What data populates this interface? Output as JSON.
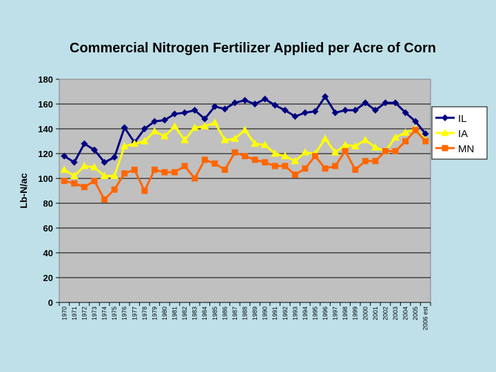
{
  "chart_data": {
    "type": "line",
    "title": "Commercial Nitrogen Fertilizer Applied per Acre of Corn",
    "xlabel": "",
    "ylabel": "Lb-N/ac",
    "ylim": [
      0,
      180
    ],
    "yticks": [
      0,
      20,
      40,
      60,
      80,
      100,
      120,
      140,
      160,
      180
    ],
    "grid": "horizontal",
    "legend_position": "right",
    "plot_background": "#c0c0c0",
    "categories": [
      "1970",
      "1971",
      "1972",
      "1973",
      "1974",
      "1975",
      "1976",
      "1977",
      "1978",
      "1979",
      "1980",
      "1981",
      "1982",
      "1983",
      "1984",
      "1985",
      "1986",
      "1987",
      "1988",
      "1989",
      "1990",
      "1991",
      "1992",
      "1993",
      "1994",
      "1995",
      "1996",
      "1997",
      "1998",
      "1999",
      "2000",
      "2001",
      "2002",
      "2003",
      "2004",
      "2005",
      "2006 est"
    ],
    "series": [
      {
        "name": "IL",
        "color": "#000080",
        "marker": "diamond",
        "values": [
          118,
          113,
          128,
          123,
          113,
          117,
          141,
          129,
          140,
          146,
          147,
          152,
          153,
          155,
          148,
          158,
          156,
          161,
          163,
          160,
          164,
          159,
          155,
          150,
          153,
          154,
          166,
          153,
          155,
          155,
          161,
          155,
          161,
          161,
          153,
          146,
          136
        ]
      },
      {
        "name": "IA",
        "color": "#ffff00",
        "marker": "triangle",
        "values": [
          107,
          102,
          110,
          109,
          102,
          102,
          126,
          128,
          130,
          138,
          134,
          142,
          131,
          141,
          142,
          145,
          131,
          132,
          139,
          128,
          127,
          120,
          118,
          114,
          121,
          120,
          132,
          121,
          127,
          126,
          131,
          125,
          122,
          133,
          137,
          140,
          131
        ]
      },
      {
        "name": "MN",
        "color": "#ff6600",
        "marker": "square",
        "values": [
          98,
          96,
          93,
          98,
          83,
          91,
          104,
          107,
          90,
          107,
          105,
          105,
          110,
          100,
          115,
          112,
          107,
          121,
          118,
          115,
          113,
          110,
          110,
          103,
          108,
          118,
          108,
          110,
          122,
          107,
          114,
          114,
          122,
          122,
          130,
          139,
          130
        ]
      }
    ]
  }
}
